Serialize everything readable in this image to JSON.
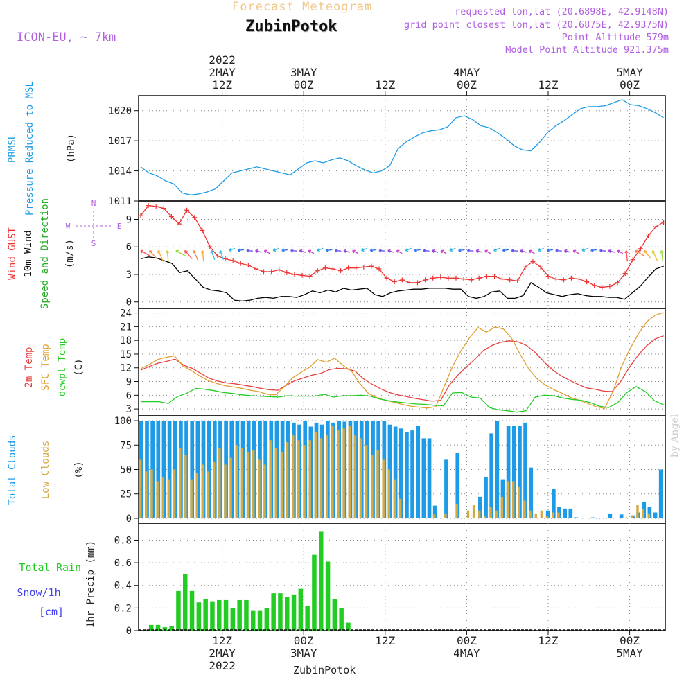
{
  "header": {
    "title": "Forecast Meteogram",
    "station": "ZubinPotok",
    "model": "ICON-EU, ~ 7km",
    "requested": "requested lon,lat (20.6898E, 42.9148N)",
    "grid_point": "grid point closest lon,lat (20.6875E, 42.9375N)",
    "point_altitude": "Point Altitude 579m",
    "model_altitude": "Model Point Altitude 921.375m"
  },
  "footer": {
    "station": "ZubinPotok"
  },
  "watermark": "by Angel",
  "time_axis": {
    "top_year": "2022",
    "top_labels": [
      [
        "2MAY",
        "12Z"
      ],
      [
        "3MAY",
        "00Z"
      ],
      [
        "",
        "12Z"
      ],
      [
        "4MAY",
        "00Z"
      ],
      [
        "",
        "12Z"
      ],
      [
        "5MAY",
        "00Z"
      ]
    ],
    "bottom_labels": [
      [
        "12Z",
        "2MAY",
        "2022"
      ],
      [
        "00Z",
        "3MAY",
        ""
      ],
      [
        "12Z",
        "",
        ""
      ],
      [
        "00Z",
        "4MAY",
        ""
      ],
      [
        "12Z",
        "",
        ""
      ],
      [
        "00Z",
        "5MAY",
        ""
      ]
    ]
  },
  "colors": {
    "pressure": "#1e9be6",
    "gust": "#ee3333",
    "wind10m": "#000000",
    "temp2m": "#e84040",
    "sfc_temp": "#e0a030",
    "dewpoint": "#22cc22",
    "total_clouds": "#1e9be6",
    "low_clouds": "#d4aa44",
    "rain": "#22cc22",
    "snow": "#4444ee",
    "label_purple": "#b060e0"
  },
  "chart_data": [
    {
      "type": "line",
      "panel": "pressure",
      "ylabels": [
        "PRMSL",
        "Pressure Reduced to MSL",
        "(hPa)"
      ],
      "yticks": [
        "1011",
        "1014",
        "1017",
        "1020"
      ],
      "ylim": [
        1011,
        1021.5
      ],
      "x_hours": [
        0,
        1,
        2,
        3,
        4,
        5,
        6,
        7,
        8,
        9,
        10,
        11,
        12,
        13,
        14,
        15,
        16,
        17,
        18,
        19,
        20,
        21,
        22,
        23,
        24,
        25,
        26,
        27,
        28,
        29,
        30,
        31,
        32,
        33,
        34,
        35,
        36,
        37,
        38,
        39,
        40,
        41,
        42,
        43,
        44,
        45,
        46,
        47,
        48,
        49,
        50,
        51,
        52,
        53,
        54,
        55,
        56,
        57,
        58,
        59,
        60,
        61,
        62,
        63,
        64,
        65,
        66,
        67,
        68,
        69,
        70,
        71,
        72,
        73,
        74,
        75,
        76,
        77
      ],
      "series": [
        {
          "name": "Pressure Reduced to MSL",
          "values": [
            1014.4,
            1013.8,
            1013.5,
            1013.0,
            1012.7,
            1011.8,
            1011.6,
            1011.7,
            1011.9,
            1012.2,
            1013.0,
            1013.8,
            1014.0,
            1014.2,
            1014.4,
            1014.2,
            1014.0,
            1013.8,
            1013.6,
            1014.2,
            1014.8,
            1015.0,
            1014.8,
            1015.1,
            1015.3,
            1015.0,
            1014.5,
            1014.1,
            1013.8,
            1014.0,
            1014.5,
            1016.2,
            1016.9,
            1017.4,
            1017.8,
            1018.0,
            1018.1,
            1018.4,
            1019.3,
            1019.5,
            1019.1,
            1018.5,
            1018.3,
            1017.8,
            1017.2,
            1016.5,
            1016.1,
            1016.0,
            1016.8,
            1017.8,
            1018.5,
            1019.0,
            1019.6,
            1020.2,
            1020.4,
            1020.4,
            1020.5,
            1020.8,
            1021.1,
            1020.6,
            1020.5,
            1020.2,
            1019.8,
            1019.3
          ]
        }
      ]
    },
    {
      "type": "line",
      "panel": "wind",
      "ylabels": [
        "Wind GUST",
        "10m Wind",
        "Speed and Direction",
        "(m/s)"
      ],
      "yticks": [
        "0",
        "3",
        "6",
        "9"
      ],
      "ylim": [
        -0.7,
        11
      ],
      "compass": {
        "n": "N",
        "s": "S",
        "e": "E",
        "w": "W"
      },
      "series": [
        {
          "name": "Wind GUST",
          "values": [
            9.4,
            10.5,
            10.4,
            10.2,
            9.3,
            8.5,
            10.0,
            9.2,
            7.8,
            6.0,
            5.0,
            4.7,
            4.5,
            4.2,
            4.0,
            3.6,
            3.3,
            3.3,
            3.5,
            3.2,
            3.0,
            2.9,
            2.8,
            3.4,
            3.7,
            3.6,
            3.4,
            3.7,
            3.7,
            3.8,
            3.9,
            3.6,
            2.6,
            2.2,
            2.4,
            2.1,
            2.1,
            2.4,
            2.6,
            2.7,
            2.6,
            2.6,
            2.5,
            2.4,
            2.6,
            2.8,
            2.8,
            2.5,
            2.4,
            2.3,
            3.8,
            4.4,
            3.8,
            2.8,
            2.5,
            2.4,
            2.6,
            2.5,
            2.2,
            1.8,
            1.6,
            1.7,
            2.1,
            3.1,
            4.6,
            5.8,
            7.2,
            8.2,
            8.7
          ]
        },
        {
          "name": "10m Wind",
          "values": [
            4.7,
            4.9,
            4.8,
            4.5,
            4.2,
            3.2,
            3.4,
            2.5,
            1.6,
            1.3,
            1.2,
            1.0,
            0.2,
            0.1,
            0.2,
            0.4,
            0.5,
            0.4,
            0.6,
            0.6,
            0.5,
            0.8,
            1.2,
            1.0,
            1.3,
            1.1,
            1.5,
            1.3,
            1.4,
            1.5,
            0.8,
            0.6,
            1.0,
            1.2,
            1.3,
            1.4,
            1.4,
            1.5,
            1.5,
            1.5,
            1.4,
            1.4,
            0.6,
            0.4,
            0.6,
            1.1,
            1.2,
            0.4,
            0.4,
            0.7,
            2.1,
            1.6,
            1.0,
            0.8,
            0.6,
            0.8,
            0.9,
            0.7,
            0.6,
            0.6,
            0.5,
            0.5,
            0.3,
            1.0,
            1.7,
            2.7,
            3.6,
            3.9
          ]
        }
      ]
    },
    {
      "type": "line",
      "panel": "temperature",
      "ylabels": [
        "2m Temp",
        "SFC Temp",
        "dewpt Temp",
        "(C)"
      ],
      "yticks": [
        "3",
        "6",
        "9",
        "12",
        "15",
        "18",
        "21",
        "24"
      ],
      "ylim": [
        1.5,
        25
      ],
      "series": [
        {
          "name": "2m Temp",
          "values": [
            11.5,
            12.3,
            13.0,
            13.4,
            13.9,
            12.6,
            11.9,
            10.8,
            9.7,
            9.1,
            8.7,
            8.5,
            8.2,
            7.9,
            7.5,
            7.2,
            7.1,
            8.2,
            9.2,
            9.8,
            10.4,
            10.8,
            11.6,
            11.9,
            11.8,
            11.3,
            9.6,
            8.4,
            7.4,
            6.6,
            6.1,
            5.7,
            5.3,
            5.0,
            4.7,
            4.9,
            8.2,
            10.4,
            12.2,
            13.9,
            15.8,
            16.9,
            17.6,
            17.9,
            17.7,
            16.9,
            15.4,
            13.4,
            11.6,
            10.3,
            9.3,
            8.4,
            7.6,
            7.3,
            6.9,
            6.8,
            9.0,
            12.1,
            14.7,
            16.8,
            18.3,
            19.0
          ]
        },
        {
          "name": "SFC Temp",
          "values": [
            11.8,
            12.7,
            13.8,
            14.3,
            14.6,
            12.4,
            11.4,
            10.2,
            9.2,
            8.6,
            8.1,
            7.8,
            7.5,
            7.1,
            6.8,
            6.2,
            6.1,
            7.8,
            9.8,
            11.0,
            12.1,
            13.8,
            13.2,
            14.1,
            12.5,
            11.3,
            8.5,
            6.4,
            5.5,
            4.9,
            4.5,
            4.0,
            3.6,
            3.4,
            3.2,
            3.5,
            8.0,
            12.4,
            15.8,
            18.6,
            20.8,
            19.8,
            20.9,
            20.5,
            18.4,
            14.9,
            11.8,
            9.6,
            8.2,
            7.2,
            6.4,
            5.5,
            4.9,
            4.2,
            3.5,
            3.1,
            6.8,
            12.2,
            16.1,
            19.4,
            22.1,
            23.5,
            24.1
          ]
        },
        {
          "name": "dewpt Temp",
          "values": [
            4.6,
            4.6,
            4.6,
            4.2,
            5.7,
            6.4,
            7.5,
            7.3,
            7.0,
            6.6,
            6.4,
            6.1,
            5.9,
            5.8,
            5.7,
            5.6,
            5.9,
            5.8,
            5.8,
            5.8,
            6.2,
            5.6,
            5.9,
            5.9,
            6.0,
            5.8,
            5.2,
            4.8,
            4.5,
            4.3,
            4.1,
            4.0,
            3.8,
            3.7,
            6.5,
            6.6,
            5.6,
            5.4,
            3.3,
            2.8,
            2.6,
            2.3,
            2.6,
            5.6,
            6.0,
            5.9,
            5.4,
            5.1,
            4.9,
            4.4,
            3.6,
            3.3,
            4.4,
            6.6,
            7.9,
            6.8,
            4.8,
            3.9
          ]
        }
      ]
    },
    {
      "type": "bar",
      "panel": "clouds",
      "ylabels": [
        "Total Clouds",
        "Low Clouds",
        "(%)"
      ],
      "yticks": [
        "0",
        "25",
        "50",
        "75",
        "100"
      ],
      "ylim": [
        -5,
        105
      ],
      "series": [
        {
          "name": "Total Clouds",
          "values": [
            100,
            100,
            100,
            100,
            100,
            100,
            100,
            100,
            100,
            100,
            100,
            100,
            100,
            100,
            100,
            100,
            100,
            100,
            100,
            100,
            100,
            100,
            100,
            100,
            100,
            100,
            100,
            98,
            96,
            100,
            94,
            98,
            96,
            100,
            98,
            100,
            99,
            100,
            100,
            100,
            100,
            100,
            100,
            100,
            96,
            94,
            92,
            88,
            90,
            95,
            82,
            82,
            13,
            0,
            60,
            0,
            67,
            0,
            0,
            0,
            22,
            42,
            87,
            100,
            40,
            95,
            95,
            95,
            98,
            52,
            0,
            0,
            8,
            30,
            12,
            10,
            10,
            1,
            0,
            0,
            1,
            0,
            0,
            5,
            0,
            4,
            0,
            3,
            6,
            17,
            12,
            6,
            50
          ]
        },
        {
          "name": "Low Clouds",
          "values": [
            60,
            48,
            50,
            38,
            42,
            40,
            50,
            72,
            65,
            40,
            46,
            55,
            48,
            58,
            72,
            55,
            62,
            75,
            72,
            68,
            70,
            60,
            55,
            80,
            72,
            68,
            78,
            85,
            80,
            75,
            80,
            88,
            82,
            85,
            95,
            90,
            92,
            95,
            85,
            82,
            75,
            65,
            70,
            60,
            50,
            40,
            20,
            0,
            0,
            0,
            0,
            0,
            4,
            0,
            5,
            0,
            15,
            0,
            8,
            14,
            8,
            2,
            12,
            8,
            22,
            38,
            38,
            32,
            18,
            8,
            5,
            8,
            2,
            6,
            6,
            0,
            0,
            0,
            0,
            0,
            0,
            0,
            0,
            0,
            0,
            0,
            1,
            3,
            14,
            10,
            5,
            0,
            0
          ]
        }
      ]
    },
    {
      "type": "bar",
      "panel": "precip",
      "ylabels": [
        "Total",
        "Rain",
        "Snow/1h",
        "[cm]",
        "1hr Precip (mm)"
      ],
      "yticks": [
        "0",
        "0.2",
        "0.4",
        "0.6",
        "0.8"
      ],
      "ylim": [
        0,
        0.95
      ],
      "series": [
        {
          "name": "Rain",
          "values": [
            0.05,
            0.05,
            0.03,
            0.04,
            0.35,
            0.5,
            0.35,
            0.25,
            0.28,
            0.26,
            0.27,
            0.27,
            0.2,
            0.27,
            0.27,
            0.18,
            0.18,
            0.2,
            0.33,
            0.33,
            0.3,
            0.32,
            0.37,
            0.22,
            0.67,
            0.88,
            0.61,
            0.28,
            0.2,
            0.07
          ]
        }
      ]
    }
  ]
}
